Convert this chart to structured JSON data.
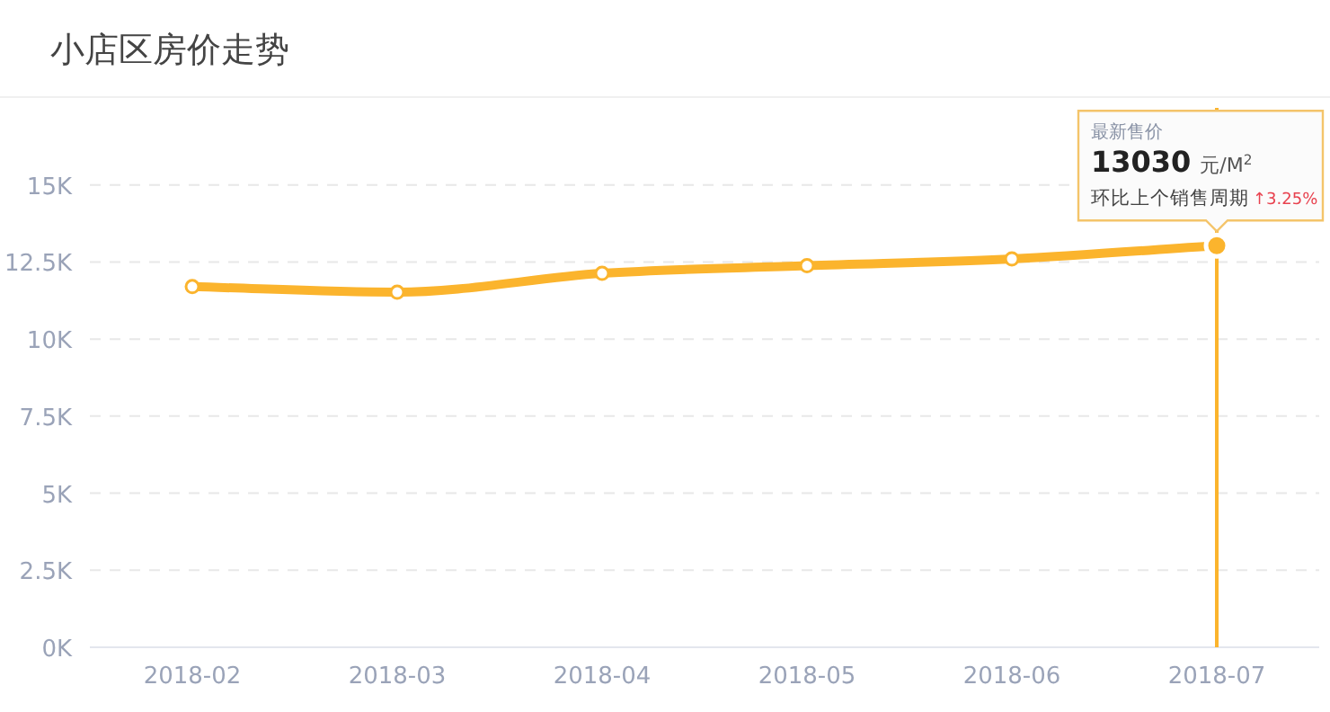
{
  "chart_data": {
    "type": "line",
    "title": "小店区房价走势",
    "categories": [
      "2018-02",
      "2018-03",
      "2018-04",
      "2018-05",
      "2018-06",
      "2018-07"
    ],
    "series": [
      {
        "color": "#fbb42d",
        "values": [
          11700,
          11520,
          12130,
          12380,
          12600,
          13030
        ]
      }
    ],
    "ylim": [
      0,
      17500
    ],
    "yticks": [
      {
        "value": 0,
        "label": "0K"
      },
      {
        "value": 2500,
        "label": "2.5K"
      },
      {
        "value": 5000,
        "label": "5K"
      },
      {
        "value": 7500,
        "label": "7.5K"
      },
      {
        "value": 10000,
        "label": "10K"
      },
      {
        "value": 12500,
        "label": "12.5K"
      },
      {
        "value": 15000,
        "label": "15K"
      }
    ],
    "grid": "y",
    "marker": "circle",
    "line_style": "solid",
    "ref_lines": [
      {
        "axis": "x",
        "value": "2018-07",
        "color": "#fbb42d"
      }
    ],
    "annotations": [
      "最新售价",
      "13030",
      "元/M$^{2}$",
      "环比上个销售周期",
      "↑3.25%"
    ]
  }
}
